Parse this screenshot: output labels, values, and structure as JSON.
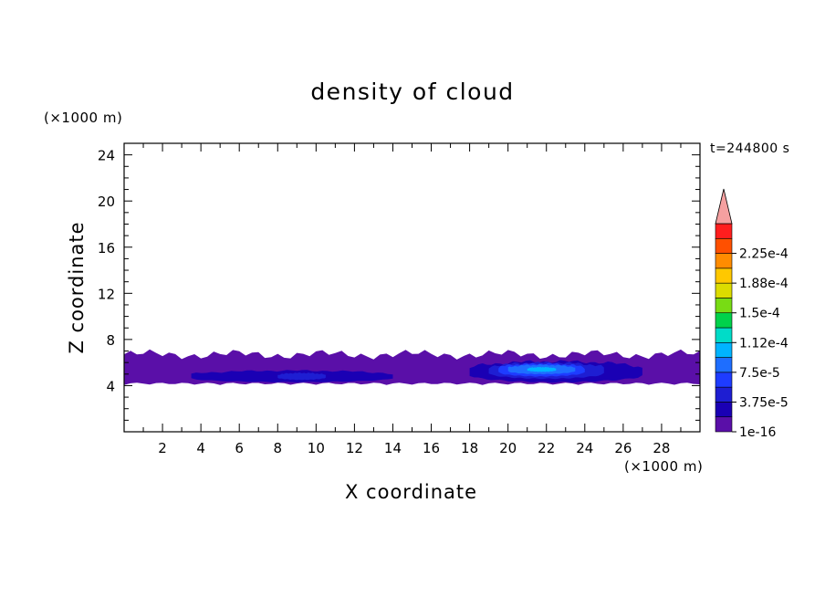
{
  "chart_data": {
    "type": "heatmap",
    "title": "density of cloud",
    "xlabel": "X coordinate",
    "ylabel": "Z coordinate",
    "x_unit": "(×1000 m)",
    "y_unit": "(×1000 m)",
    "time_label": "t=244800 s",
    "xlim": [
      0,
      30
    ],
    "ylim": [
      0,
      25
    ],
    "x_ticks": [
      2,
      4,
      6,
      8,
      10,
      12,
      14,
      16,
      18,
      20,
      22,
      24,
      26,
      28
    ],
    "y_ticks": [
      4,
      8,
      12,
      16,
      20,
      24
    ],
    "levels": [
      "1e-16",
      "1.875e-5",
      "3.75e-5",
      "5.625e-5",
      "7.5e-5",
      "9.375e-5",
      "1.12e-4",
      "1.31e-4",
      "1.5e-4",
      "1.69e-4",
      "1.88e-4",
      "2.06e-4",
      "2.25e-4",
      "2.44e-4"
    ],
    "colorbar_labels": [
      "1e-16",
      "3.75e-5",
      "7.5e-5",
      "1.12e-4",
      "1.5e-4",
      "1.88e-4",
      "2.25e-4"
    ],
    "colors": [
      "#5a0fa8",
      "#1a00b4",
      "#1e1ed2",
      "#1e3cff",
      "#1e6eff",
      "#00b4ff",
      "#00dcc8",
      "#00d24b",
      "#78dc14",
      "#dcdc00",
      "#ffc800",
      "#ff8c00",
      "#ff5000",
      "#ff1e1e"
    ],
    "over_color": "#f5a0a0",
    "cloud_layer": {
      "x_range": [
        0,
        30
      ],
      "z_bottom": 4.0,
      "z_top": 7.0
    },
    "cloud_cores": [
      {
        "x_range": [
          3.5,
          14
        ],
        "z_range": [
          4.3,
          5.3
        ],
        "level": 1
      },
      {
        "x_range": [
          8,
          10.5
        ],
        "z_range": [
          4.5,
          5.1
        ],
        "level": 2
      },
      {
        "x_range": [
          18,
          27
        ],
        "z_range": [
          4.3,
          6.1
        ],
        "level": 1
      },
      {
        "x_range": [
          19,
          25
        ],
        "z_range": [
          4.6,
          6.0
        ],
        "level": 2
      },
      {
        "x_range": [
          19.5,
          24
        ],
        "z_range": [
          4.8,
          5.9
        ],
        "level": 3
      },
      {
        "x_range": [
          20,
          23.5
        ],
        "z_range": [
          5.0,
          5.8
        ],
        "level": 4
      },
      {
        "x_range": [
          21,
          22.5
        ],
        "z_range": [
          5.2,
          5.6
        ],
        "level": 5
      }
    ]
  }
}
